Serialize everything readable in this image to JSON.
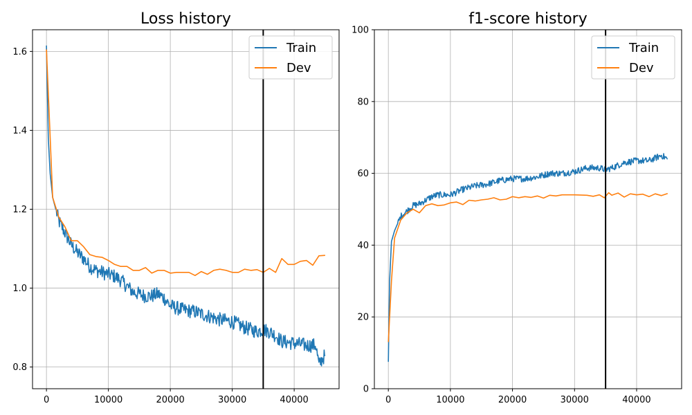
{
  "chart_data": [
    {
      "type": "line",
      "title": "Loss history",
      "xlabel": "",
      "ylabel": "",
      "xlim": [
        -2250,
        47250
      ],
      "ylim": [
        0.745,
        1.655
      ],
      "xticks": [
        0,
        10000,
        20000,
        30000,
        40000
      ],
      "xtick_labels": [
        "0",
        "10000",
        "20000",
        "30000",
        "40000"
      ],
      "yticks": [
        0.8,
        1.0,
        1.2,
        1.4,
        1.6
      ],
      "ytick_labels": [
        "0.8",
        "1.0",
        "1.2",
        "1.4",
        "1.6"
      ],
      "grid": true,
      "legend_position": "top-right",
      "vline": 35000,
      "series": [
        {
          "name": "Train",
          "color": "#1f77b4",
          "noise": 0.018,
          "points": [
            [
              0,
              1.615
            ],
            [
              300,
              1.38
            ],
            [
              600,
              1.29
            ],
            [
              1000,
              1.23
            ],
            [
              1500,
              1.2
            ],
            [
              2000,
              1.17
            ],
            [
              3000,
              1.14
            ],
            [
              4000,
              1.11
            ],
            [
              5000,
              1.09
            ],
            [
              6000,
              1.075
            ],
            [
              7000,
              1.055
            ],
            [
              8000,
              1.045
            ],
            [
              9000,
              1.04
            ],
            [
              10000,
              1.035
            ],
            [
              11000,
              1.03
            ],
            [
              12000,
              1.02
            ],
            [
              13000,
              1.005
            ],
            [
              14000,
              0.99
            ],
            [
              15000,
              0.985
            ],
            [
              16000,
              0.98
            ],
            [
              17000,
              0.98
            ],
            [
              18000,
              0.985
            ],
            [
              19000,
              0.975
            ],
            [
              20000,
              0.955
            ],
            [
              22000,
              0.945
            ],
            [
              24000,
              0.94
            ],
            [
              26000,
              0.93
            ],
            [
              28000,
              0.92
            ],
            [
              30000,
              0.915
            ],
            [
              32000,
              0.9
            ],
            [
              34000,
              0.89
            ],
            [
              35000,
              0.895
            ],
            [
              36000,
              0.89
            ],
            [
              37000,
              0.88
            ],
            [
              38000,
              0.865
            ],
            [
              40000,
              0.86
            ],
            [
              42000,
              0.855
            ],
            [
              43500,
              0.855
            ],
            [
              44000,
              0.805
            ],
            [
              44500,
              0.82
            ],
            [
              45000,
              0.83
            ]
          ]
        },
        {
          "name": "Dev",
          "color": "#ff7f0e",
          "noise": 0,
          "points": [
            [
              0,
              1.605
            ],
            [
              500,
              1.42
            ],
            [
              1000,
              1.23
            ],
            [
              2000,
              1.18
            ],
            [
              3000,
              1.155
            ],
            [
              4000,
              1.12
            ],
            [
              5000,
              1.12
            ],
            [
              6000,
              1.105
            ],
            [
              7000,
              1.085
            ],
            [
              8000,
              1.08
            ],
            [
              9000,
              1.078
            ],
            [
              10000,
              1.07
            ],
            [
              11000,
              1.06
            ],
            [
              12000,
              1.055
            ],
            [
              13000,
              1.055
            ],
            [
              14000,
              1.045
            ],
            [
              15000,
              1.045
            ],
            [
              16000,
              1.052
            ],
            [
              17000,
              1.038
            ],
            [
              18000,
              1.045
            ],
            [
              19000,
              1.045
            ],
            [
              20000,
              1.038
            ],
            [
              21000,
              1.04
            ],
            [
              22000,
              1.04
            ],
            [
              23000,
              1.04
            ],
            [
              24000,
              1.032
            ],
            [
              25000,
              1.042
            ],
            [
              26000,
              1.035
            ],
            [
              27000,
              1.045
            ],
            [
              28000,
              1.048
            ],
            [
              29000,
              1.045
            ],
            [
              30000,
              1.04
            ],
            [
              31000,
              1.04
            ],
            [
              32000,
              1.048
            ],
            [
              33000,
              1.045
            ],
            [
              34000,
              1.047
            ],
            [
              35000,
              1.04
            ],
            [
              36000,
              1.05
            ],
            [
              37000,
              1.04
            ],
            [
              38000,
              1.075
            ],
            [
              39000,
              1.06
            ],
            [
              40000,
              1.06
            ],
            [
              41000,
              1.068
            ],
            [
              42000,
              1.07
            ],
            [
              43000,
              1.058
            ],
            [
              44000,
              1.082
            ],
            [
              45000,
              1.083
            ]
          ]
        }
      ]
    },
    {
      "type": "line",
      "title": "f1-score history",
      "xlabel": "",
      "ylabel": "",
      "xlim": [
        -2250,
        47250
      ],
      "ylim": [
        0,
        100
      ],
      "xticks": [
        0,
        10000,
        20000,
        30000,
        40000
      ],
      "xtick_labels": [
        "0",
        "10000",
        "20000",
        "30000",
        "40000"
      ],
      "yticks": [
        0,
        20,
        40,
        60,
        80,
        100
      ],
      "ytick_labels": [
        "0",
        "20",
        "40",
        "60",
        "80",
        "100"
      ],
      "grid": true,
      "legend_position": "top-right",
      "vline": 35000,
      "series": [
        {
          "name": "Train",
          "color": "#1f77b4",
          "noise": 0.9,
          "points": [
            [
              0,
              7.5
            ],
            [
              200,
              30
            ],
            [
              500,
              41
            ],
            [
              1000,
              44
            ],
            [
              1500,
              46
            ],
            [
              2000,
              48
            ],
            [
              3000,
              49.5
            ],
            [
              4000,
              51
            ],
            [
              5000,
              51.5
            ],
            [
              6000,
              52.5
            ],
            [
              7000,
              53.5
            ],
            [
              8000,
              54
            ],
            [
              10000,
              54
            ],
            [
              12000,
              55.5
            ],
            [
              14000,
              56.5
            ],
            [
              16000,
              57
            ],
            [
              18000,
              58
            ],
            [
              20000,
              58.5
            ],
            [
              22000,
              58.5
            ],
            [
              24000,
              59
            ],
            [
              26000,
              60
            ],
            [
              28000,
              60
            ],
            [
              30000,
              60.5
            ],
            [
              32000,
              61.5
            ],
            [
              34000,
              61.5
            ],
            [
              35000,
              61
            ],
            [
              36000,
              61.5
            ],
            [
              38000,
              63
            ],
            [
              40000,
              63.5
            ],
            [
              42000,
              63.5
            ],
            [
              44000,
              65
            ],
            [
              45000,
              64
            ]
          ]
        },
        {
          "name": "Dev",
          "color": "#ff7f0e",
          "noise": 0,
          "points": [
            [
              0,
              13
            ],
            [
              500,
              30
            ],
            [
              1000,
              42
            ],
            [
              2000,
              47
            ],
            [
              3000,
              49
            ],
            [
              4000,
              50
            ],
            [
              5000,
              49
            ],
            [
              6000,
              51
            ],
            [
              7000,
              51.5
            ],
            [
              8000,
              51
            ],
            [
              9000,
              51.2
            ],
            [
              10000,
              51.8
            ],
            [
              11000,
              52
            ],
            [
              12000,
              51.3
            ],
            [
              13000,
              52.5
            ],
            [
              14000,
              52.3
            ],
            [
              15000,
              52.6
            ],
            [
              16000,
              52.8
            ],
            [
              17000,
              53.2
            ],
            [
              18000,
              52.6
            ],
            [
              19000,
              52.8
            ],
            [
              20000,
              53.5
            ],
            [
              21000,
              53.2
            ],
            [
              22000,
              53.5
            ],
            [
              23000,
              53.3
            ],
            [
              24000,
              53.7
            ],
            [
              25000,
              53.1
            ],
            [
              26000,
              53.9
            ],
            [
              27000,
              53.7
            ],
            [
              28000,
              54
            ],
            [
              30000,
              54
            ],
            [
              32000,
              53.9
            ],
            [
              33000,
              53.6
            ],
            [
              34000,
              54
            ],
            [
              34800,
              53.2
            ],
            [
              35500,
              54.6
            ],
            [
              36000,
              53.9
            ],
            [
              37000,
              54.5
            ],
            [
              38000,
              53.4
            ],
            [
              39000,
              54.3
            ],
            [
              40000,
              54
            ],
            [
              41000,
              54.2
            ],
            [
              42000,
              53.5
            ],
            [
              43000,
              54.3
            ],
            [
              44000,
              53.8
            ],
            [
              45000,
              54.4
            ]
          ]
        }
      ]
    }
  ]
}
